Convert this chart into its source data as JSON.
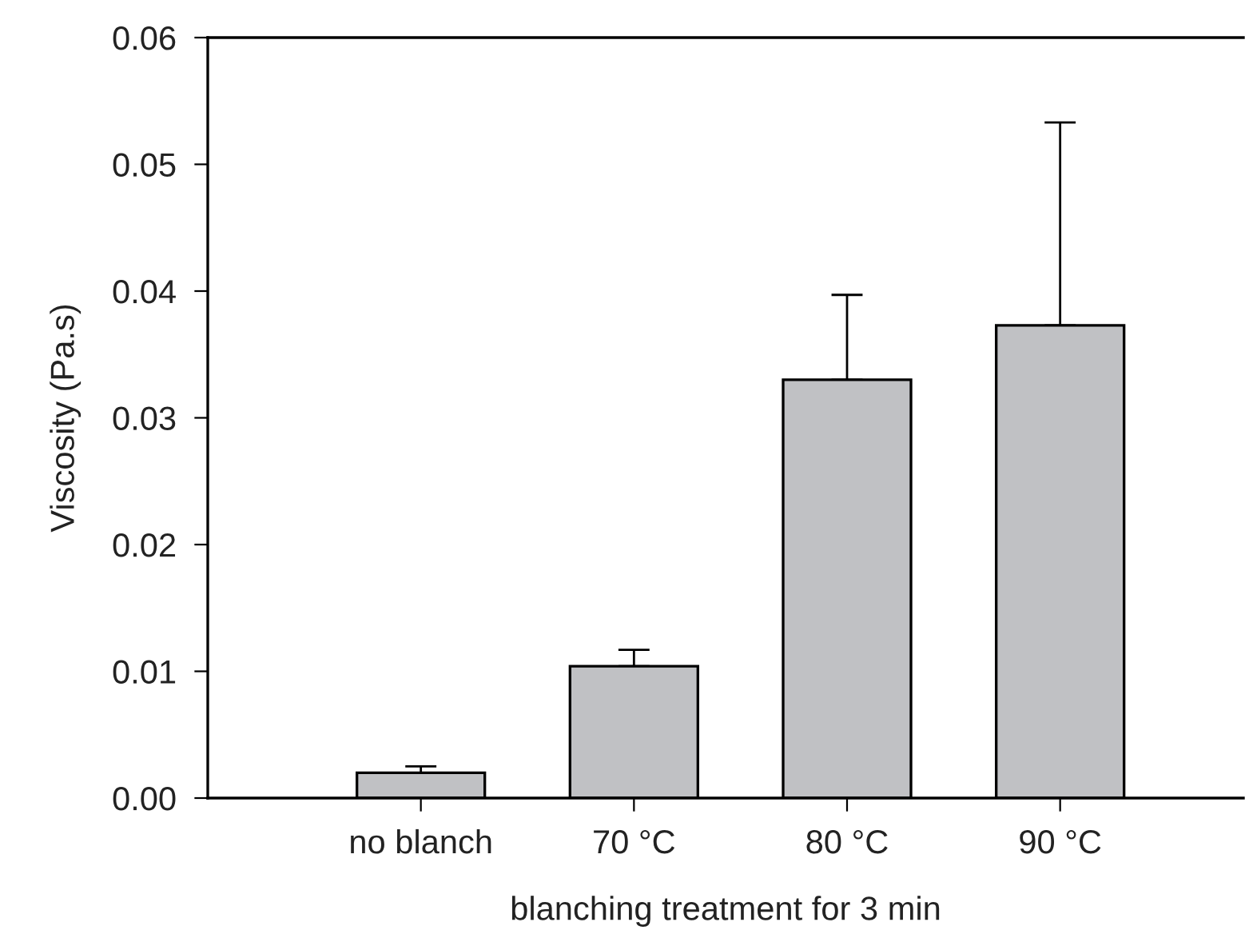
{
  "chart_data": {
    "type": "bar",
    "xlabel": "blanching treatment for 3 min",
    "ylabel": "Viscosity (Pa.s)",
    "categories": [
      "no blanch",
      "70 °C",
      "80 °C",
      "90 °C"
    ],
    "values": [
      0.002,
      0.0104,
      0.033,
      0.0373
    ],
    "errors": [
      [
        0.002,
        0.0025
      ],
      [
        0.0104,
        0.0117
      ],
      [
        0.033,
        0.0397
      ],
      [
        0.0373,
        0.0533
      ]
    ],
    "color": "#c0c1c4",
    "ylim": [
      0,
      0.06
    ],
    "yticks": [
      {
        "value": 0,
        "label": "0.00"
      },
      0.01,
      0.02,
      0.03,
      0.04,
      0.05,
      0.06
    ],
    "grid": false,
    "legend": false
  }
}
